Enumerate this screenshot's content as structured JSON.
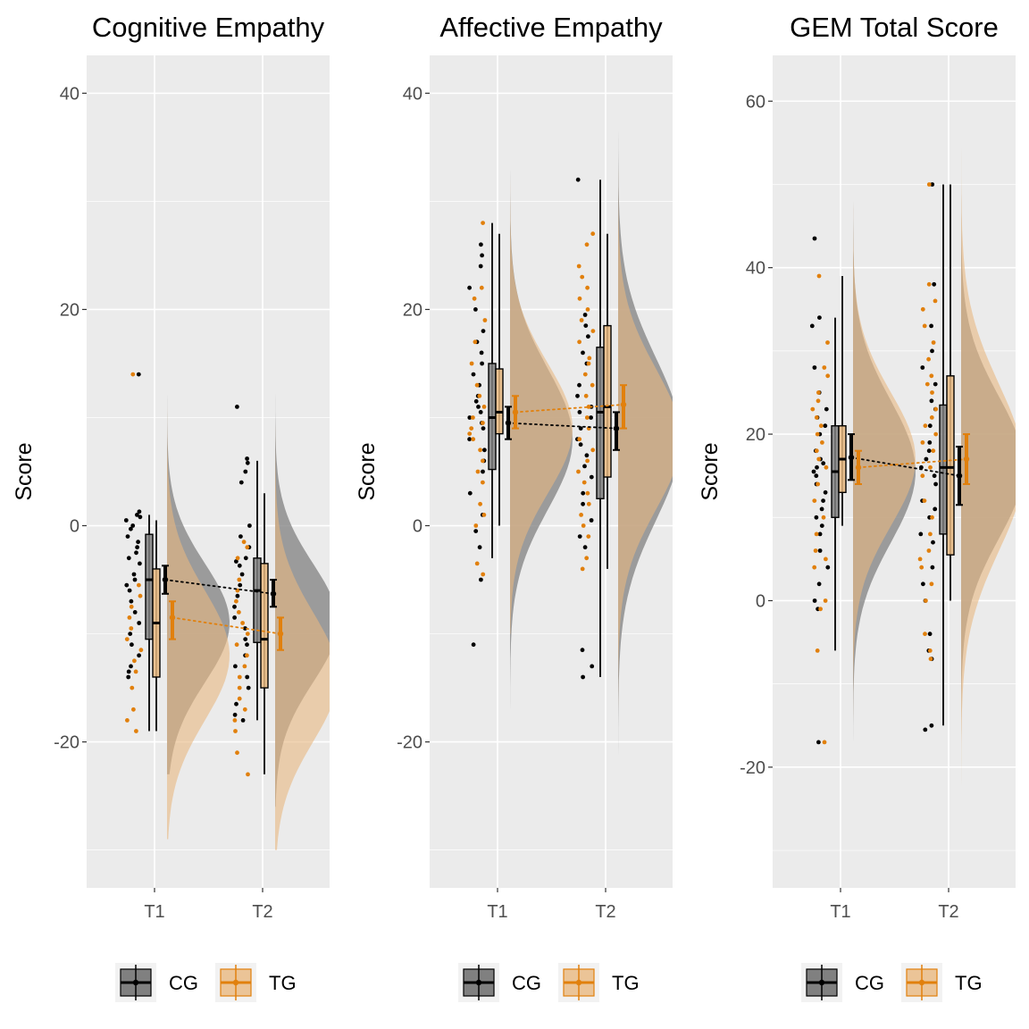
{
  "colors": {
    "cg": "#000000",
    "tg": "#e1800d",
    "cg_fill": "#808080",
    "tg_fill": "#e8b880",
    "panel_bg": "#ebebeb",
    "grid": "#ffffff",
    "tick": "#4d4d4d"
  },
  "legend": {
    "cg_label": "CG",
    "tg_label": "TG"
  },
  "chart_data": [
    {
      "type": "raincloud",
      "title": "Cognitive Empathy",
      "xlabel": "",
      "ylabel": "Score",
      "categories": [
        "T1",
        "T2"
      ],
      "ylim": [
        -33.5,
        43.5
      ],
      "yticks": [
        -20,
        0,
        20,
        40
      ],
      "grid": true,
      "legend": "bottom",
      "series": [
        {
          "name": "CG",
          "density": [
            {
              "range": [
                -23,
                19
              ],
              "center": -9,
              "sd": 5.5
            },
            {
              "range": [
                -26,
                19
              ],
              "center": -9,
              "sd": 5.5
            }
          ],
          "box": [
            {
              "whisker_low": -19,
              "q1": -10.5,
              "median": -5,
              "q3": -0.8,
              "whisker_high": 1
            },
            {
              "whisker_low": -18,
              "q1": -10.8,
              "median": -6,
              "q3": -3,
              "whisker_high": 6
            }
          ],
          "mean": [
            -5,
            -6.3
          ],
          "ci": [
            [
              -6.3,
              -3.7
            ],
            [
              -7.5,
              -5
            ]
          ],
          "points": [
            [
              14,
              1.3,
              1,
              0.8,
              0.5,
              0,
              -0.3,
              -1,
              -1.5,
              -2,
              -2.5,
              -3,
              -3.5,
              -4.5,
              -5,
              -5.5,
              -6,
              -7,
              -8,
              -9,
              -10,
              -11,
              -12,
              -13,
              -13.5,
              -14
            ],
            [
              11,
              6.2,
              5.8,
              5,
              4,
              0,
              -1,
              -2,
              -3,
              -3.3,
              -3.7,
              -4.5,
              -5.5,
              -6.5,
              -7.5,
              -8.5,
              -9.5,
              -10.5,
              -11,
              -12,
              -13,
              -14,
              -15,
              -16.5,
              -17.5,
              -18
            ]
          ]
        },
        {
          "name": "TG",
          "density": [
            {
              "range": [
                -29,
                22
              ],
              "center": -12,
              "sd": 6
            },
            {
              "range": [
                -30,
                15
              ],
              "center": -14,
              "sd": 6
            }
          ],
          "box": [
            {
              "whisker_low": -19,
              "q1": -14,
              "median": -9,
              "q3": -4,
              "whisker_high": 0.5
            },
            {
              "whisker_low": -23,
              "q1": -15,
              "median": -10.5,
              "q3": -3.5,
              "whisker_high": 3
            }
          ],
          "mean": [
            -8.5,
            -10
          ],
          "ci": [
            [
              -10.5,
              -7
            ],
            [
              -11.5,
              -8.5
            ]
          ],
          "points": [
            [
              14,
              -5.5,
              -6.5,
              -7.5,
              -8.5,
              -9.5,
              -10.5,
              -11.5,
              -12.5,
              -13.5,
              -15,
              -17,
              -18,
              -19
            ],
            [
              -1.5,
              -2,
              -3,
              -5,
              -6,
              -7,
              -8,
              -9,
              -10,
              -11,
              -12,
              -13,
              -14,
              -15,
              -16,
              -17,
              -18,
              -19,
              -21,
              -23
            ]
          ]
        }
      ]
    },
    {
      "type": "raincloud",
      "title": "Affective Empathy",
      "xlabel": "",
      "ylabel": "Score",
      "categories": [
        "T1",
        "T2"
      ],
      "ylim": [
        -33.5,
        43.5
      ],
      "yticks": [
        -20,
        0,
        20,
        40
      ],
      "grid": true,
      "legend": "bottom",
      "series": [
        {
          "name": "CG",
          "density": [
            {
              "range": [
                -19,
                35
              ],
              "center": 8,
              "sd": 6.5
            },
            {
              "range": [
                -29,
                40
              ],
              "center": 8,
              "sd": 7.5
            }
          ],
          "box": [
            {
              "whisker_low": -3,
              "q1": 5.2,
              "median": 10,
              "q3": 15,
              "whisker_high": 28
            },
            {
              "whisker_low": -14,
              "q1": 2.5,
              "median": 10.5,
              "q3": 16.5,
              "whisker_high": 32
            }
          ],
          "mean": [
            9.5,
            9
          ],
          "ci": [
            [
              8,
              11
            ],
            [
              7,
              10.5
            ]
          ],
          "points": [
            [
              26,
              25,
              24,
              22,
              20,
              18,
              17,
              16,
              15,
              14,
              13,
              12,
              11.5,
              11,
              10.5,
              10,
              9.5,
              9,
              8,
              7,
              6,
              5,
              3,
              1,
              -0.5,
              -2,
              -5,
              -11
            ],
            [
              32,
              19.5,
              18.5,
              17.5,
              16,
              15,
              13,
              12,
              11,
              10.5,
              10,
              9,
              8,
              7.5,
              6.5,
              5.5,
              4.5,
              3,
              2,
              0.5,
              -1,
              -2,
              -11.5,
              -13,
              -14
            ]
          ]
        },
        {
          "name": "TG",
          "density": [
            {
              "range": [
                -10,
                36
              ],
              "center": 9,
              "sd": 6
            },
            {
              "range": [
                -20,
                40
              ],
              "center": 8,
              "sd": 6.5
            }
          ],
          "box": [
            {
              "whisker_low": 0,
              "q1": 8.5,
              "median": 10.5,
              "q3": 14.5,
              "whisker_high": 27
            },
            {
              "whisker_low": -4,
              "q1": 4.5,
              "median": 11,
              "q3": 18.5,
              "whisker_high": 27
            }
          ],
          "mean": [
            10.5,
            11.2
          ],
          "ci": [
            [
              9,
              12
            ],
            [
              9,
              13
            ]
          ],
          "points": [
            [
              28,
              22,
              21,
              19,
              17,
              15,
              13,
              12,
              11,
              10,
              9.5,
              9,
              8.5,
              8,
              7,
              6,
              5,
              4,
              2,
              1,
              0,
              -3.5,
              -4.5
            ],
            [
              27,
              26,
              24,
              23,
              22,
              21,
              20,
              19,
              18,
              17,
              15.5,
              15,
              14,
              13,
              12,
              11,
              10,
              9,
              8,
              7,
              6,
              5,
              4,
              3,
              2,
              1,
              0,
              -1,
              -3,
              -4
            ]
          ]
        }
      ]
    },
    {
      "type": "raincloud",
      "title": "GEM Total Score",
      "xlabel": "",
      "ylabel": "Score",
      "categories": [
        "T1",
        "T2"
      ],
      "ylim": [
        -34.5,
        65.5
      ],
      "yticks": [
        -20,
        0,
        20,
        40,
        60
      ],
      "grid": true,
      "legend": "bottom",
      "series": [
        {
          "name": "CG",
          "density": [
            {
              "range": [
                -26,
                54
              ],
              "center": 15.5,
              "sd": 8.5
            },
            {
              "range": [
                -30,
                53
              ],
              "center": 16,
              "sd": 8.5
            }
          ],
          "box": [
            {
              "whisker_low": -6,
              "q1": 10,
              "median": 15.5,
              "q3": 21,
              "whisker_high": 34
            },
            {
              "whisker_low": -15,
              "q1": 8,
              "median": 16,
              "q3": 23.5,
              "whisker_high": 50
            }
          ],
          "mean": [
            17.2,
            15
          ],
          "ci": [
            [
              14.5,
              20
            ],
            [
              11.5,
              18.5
            ]
          ],
          "points": [
            [
              43.5,
              34,
              33,
              28,
              25,
              23,
              22,
              21,
              20,
              18,
              17,
              16.5,
              16,
              15.5,
              15,
              14,
              13,
              12,
              11,
              10,
              9,
              8,
              6,
              4,
              2,
              0,
              -1,
              -17
            ],
            [
              50,
              38,
              33,
              30,
              28,
              26,
              24,
              23,
              21,
              19,
              18,
              17,
              16,
              15,
              14,
              12,
              11,
              10,
              8,
              7,
              4,
              2,
              0,
              -4,
              -6,
              -7,
              -15,
              -15.5
            ]
          ]
        },
        {
          "name": "TG",
          "density": [
            {
              "range": [
                -28,
                50
              ],
              "center": 17,
              "sd": 8
            },
            {
              "range": [
                -29,
                60
              ],
              "center": 16,
              "sd": 10
            }
          ],
          "box": [
            {
              "whisker_low": 9,
              "q1": 13,
              "median": 17,
              "q3": 21,
              "whisker_high": 39
            },
            {
              "whisker_low": 0,
              "q1": 5.5,
              "median": 16,
              "q3": 27,
              "whisker_high": 50
            }
          ],
          "mean": [
            16,
            17
          ],
          "ci": [
            [
              14,
              18
            ],
            [
              14,
              20
            ]
          ],
          "points": [
            [
              39,
              31,
              28,
              27,
              25,
              24,
              23,
              22,
              21,
              20,
              19,
              18,
              17,
              16,
              14,
              12,
              10,
              8,
              6,
              5,
              4,
              0,
              -1,
              -6,
              -17
            ],
            [
              50,
              38,
              36,
              35,
              33,
              31,
              29,
              27,
              26,
              25,
              23,
              22,
              21,
              20,
              19,
              18,
              16,
              15,
              12,
              10,
              8,
              6,
              5,
              4,
              2,
              0,
              -4,
              -6,
              -7
            ]
          ]
        }
      ]
    }
  ]
}
